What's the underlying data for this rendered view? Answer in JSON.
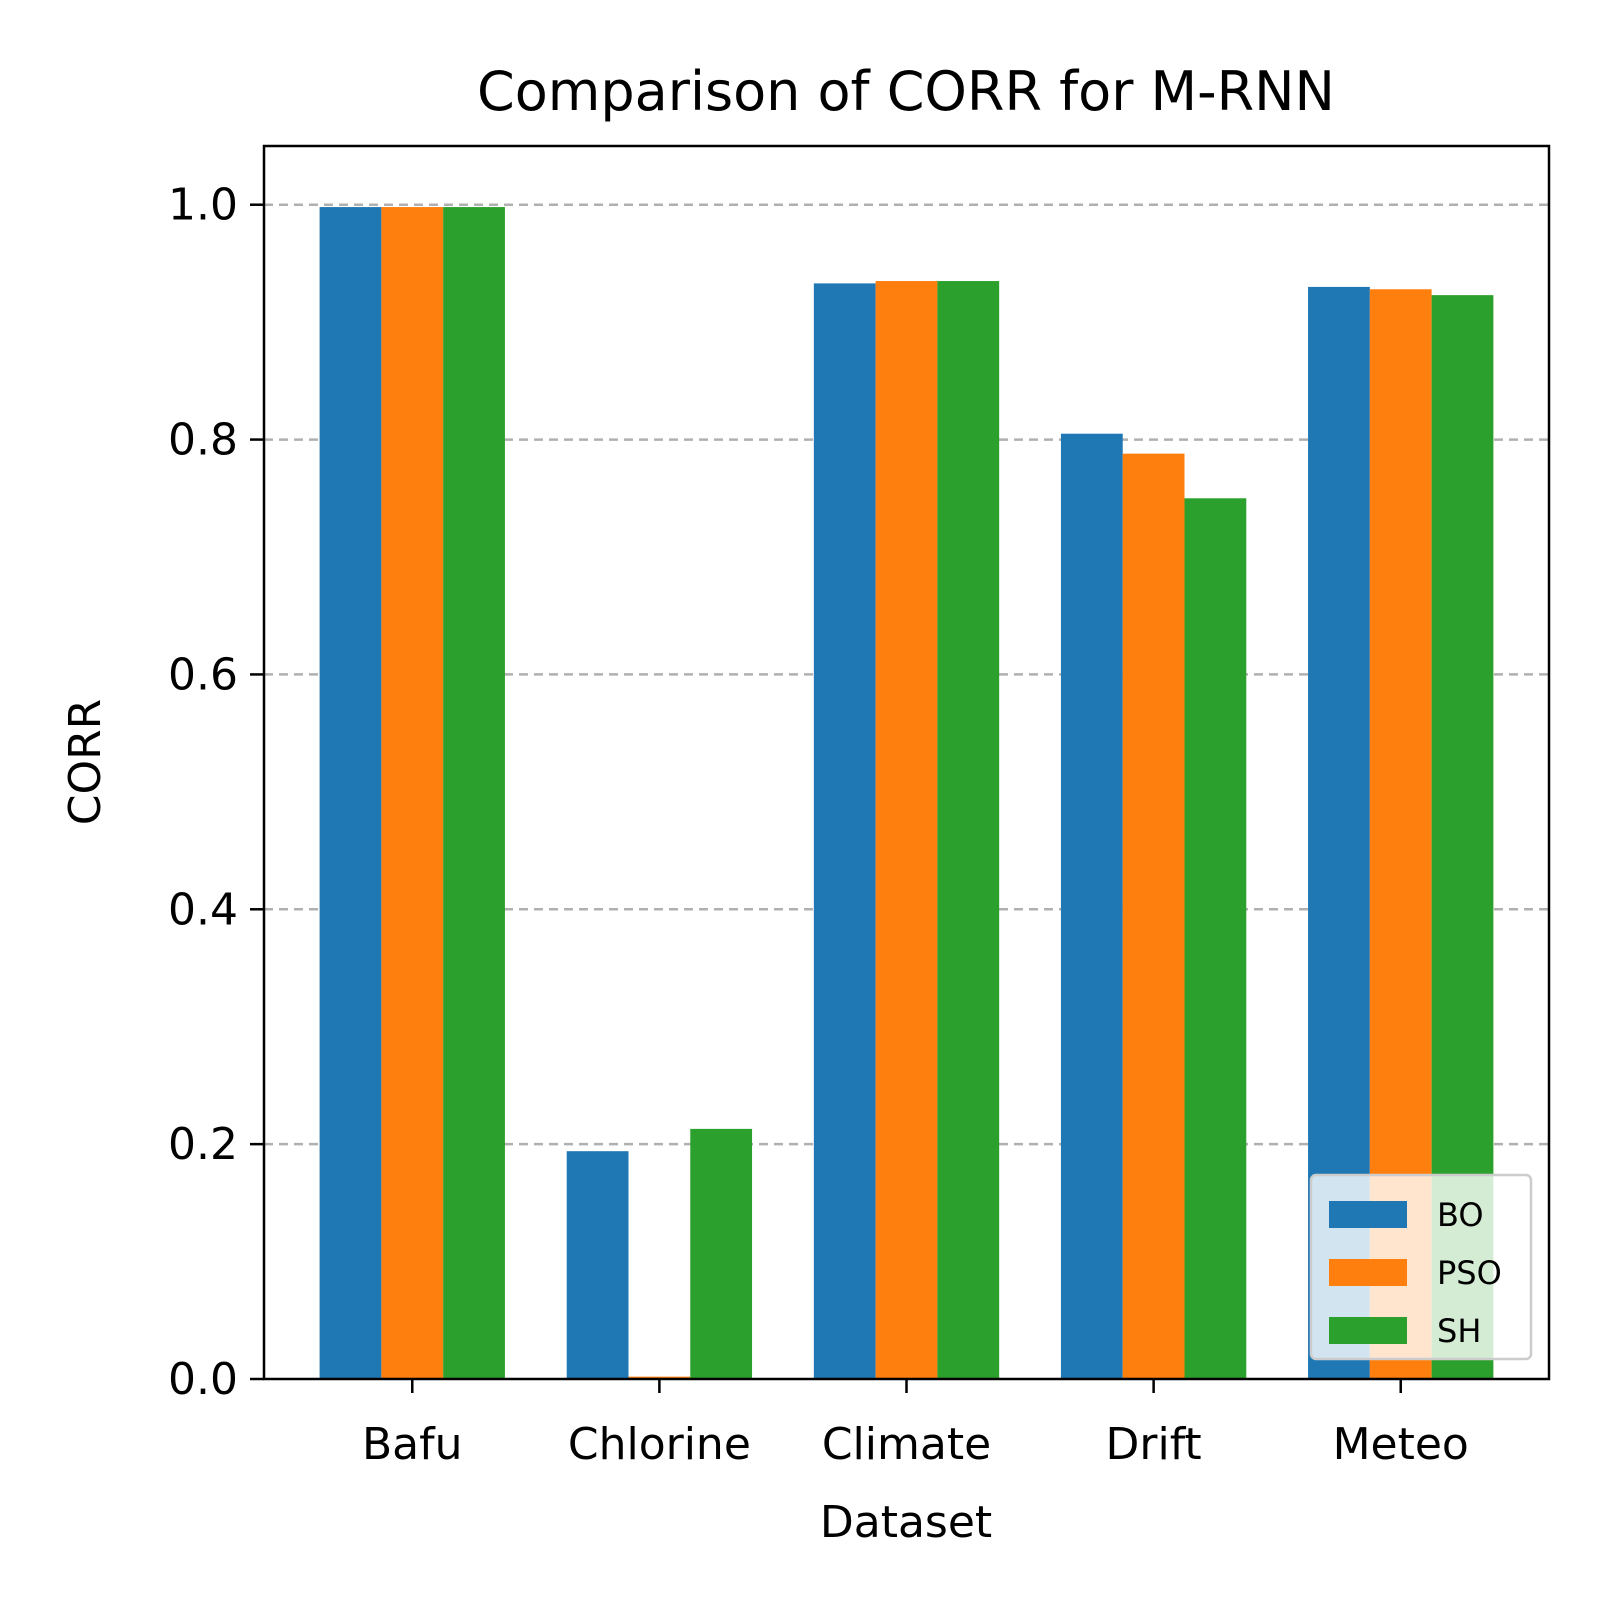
{
  "chart_data": {
    "type": "bar",
    "title": "Comparison of CORR for M-RNN",
    "xlabel": "Dataset",
    "ylabel": "CORR",
    "categories": [
      "Bafu",
      "Chlorine",
      "Climate",
      "Drift",
      "Meteo"
    ],
    "series": [
      {
        "name": "BO",
        "color": "#1f77b4",
        "values": [
          0.998,
          0.194,
          0.933,
          0.805,
          0.93
        ]
      },
      {
        "name": "PSO",
        "color": "#ff7f0e",
        "values": [
          0.998,
          0.002,
          0.935,
          0.788,
          0.928
        ]
      },
      {
        "name": "SH",
        "color": "#2ca02c",
        "values": [
          0.998,
          0.213,
          0.935,
          0.75,
          0.923
        ]
      }
    ],
    "ylim": [
      0,
      1.05
    ],
    "yticks": [
      "0.0",
      "0.2",
      "0.4",
      "0.6",
      "0.8",
      "1.0"
    ],
    "grid": "y-dashed",
    "legend_position": "lower-right"
  }
}
